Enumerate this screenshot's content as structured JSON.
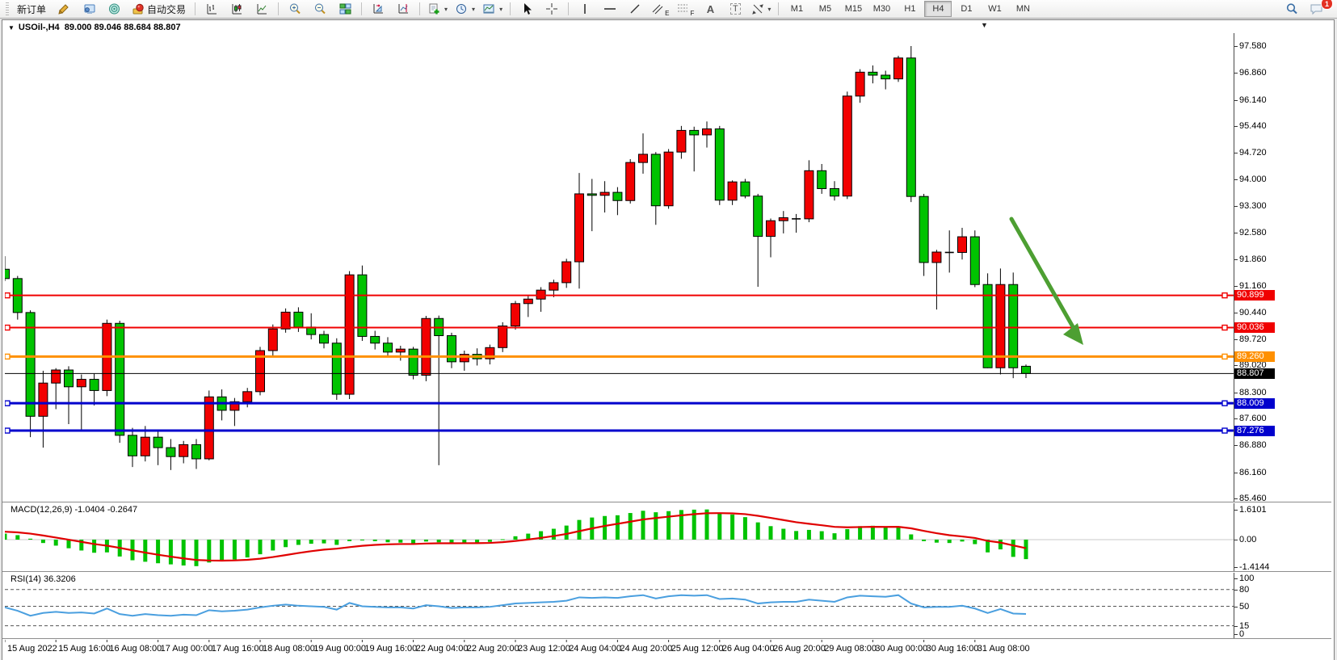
{
  "toolbar": {
    "new_order": "新订单",
    "autotrading": "自动交易",
    "timeframes": [
      "M1",
      "M5",
      "M15",
      "M30",
      "H1",
      "H4",
      "D1",
      "W1",
      "MN"
    ],
    "selected_timeframe": "H4",
    "notification_badge": "1",
    "tool_letters": {
      "channel": "E",
      "fibo": "F",
      "text": "A",
      "label": "T"
    },
    "icons": [
      "new-order",
      "market-watch",
      "navigator",
      "autotrading",
      "bar-chart",
      "candlestick-chart",
      "line-chart",
      "zoom-in",
      "zoom-out",
      "tile-windows",
      "arrange-windows",
      "cascade-windows",
      "new-chart",
      "periods",
      "templates",
      "cursor",
      "crosshair",
      "vertical-line",
      "horizontal-line",
      "trendline",
      "equidistant-channel",
      "fibonacci",
      "text",
      "text-label",
      "arrows",
      "search",
      "chat"
    ]
  },
  "chart_header": {
    "symbol_period": "USOil-,H4",
    "open": "89.000",
    "high": "89.046",
    "low": "88.684",
    "close": "88.807"
  },
  "price_scale": {
    "ticks": [
      "97.580",
      "96.860",
      "96.140",
      "95.440",
      "94.720",
      "94.000",
      "93.300",
      "92.580",
      "91.860",
      "91.160",
      "90.440",
      "89.720",
      "89.020",
      "88.300",
      "87.600",
      "86.880",
      "86.160",
      "85.460"
    ]
  },
  "levels": [
    {
      "label": "90.899",
      "price": 90.899,
      "color": "#f00000",
      "thickness": 2,
      "handles": true
    },
    {
      "label": "90.036",
      "price": 90.036,
      "color": "#f00000",
      "thickness": 2,
      "handles": true
    },
    {
      "label": "89.260",
      "price": 89.26,
      "color": "#ff9000",
      "thickness": 3,
      "handles": true
    },
    {
      "label": "88.807",
      "price": 88.807,
      "color": "#000000",
      "thickness": 1,
      "handles": false
    },
    {
      "label": "88.009",
      "price": 88.009,
      "color": "#0000cd",
      "thickness": 3,
      "handles": true
    },
    {
      "label": "87.276",
      "price": 87.276,
      "color": "#0000cd",
      "thickness": 3,
      "handles": true
    }
  ],
  "time_axis": [
    "15 Aug 2022",
    "15 Aug 16:00",
    "16 Aug 08:00",
    "17 Aug 00:00",
    "17 Aug 16:00",
    "18 Aug 08:00",
    "19 Aug 00:00",
    "19 Aug 16:00",
    "22 Aug 04:00",
    "22 Aug 20:00",
    "23 Aug 12:00",
    "24 Aug 04:00",
    "24 Aug 20:00",
    "25 Aug 12:00",
    "26 Aug 04:00",
    "26 Aug 20:00",
    "29 Aug 08:00",
    "30 Aug 00:00",
    "30 Aug 16:00",
    "31 Aug 08:00"
  ],
  "macd_panel": {
    "label": "MACD(12,26,9)",
    "values": "-1.0404 -0.2647",
    "scale": [
      "1.6101",
      "0.00",
      "-1.4144"
    ]
  },
  "rsi_panel": {
    "label": "RSI(14)",
    "value": "36.3206",
    "scale": [
      100,
      80,
      50,
      15,
      0
    ],
    "dashed_levels": [
      80,
      50,
      15
    ]
  },
  "chart_data": {
    "type": "candlestick",
    "title": "USOil-,H4",
    "ylim": [
      85.46,
      97.58
    ],
    "up_color": "#f20000",
    "down_color": "#00c300",
    "doji_color": "#000000",
    "candles": [
      [
        91.6,
        91.95,
        91.28,
        91.35
      ],
      [
        91.35,
        91.42,
        90.25,
        90.44
      ],
      [
        90.44,
        90.5,
        87.1,
        87.66
      ],
      [
        87.66,
        88.88,
        86.82,
        88.55
      ],
      [
        88.55,
        88.95,
        87.85,
        88.9
      ],
      [
        88.9,
        89.0,
        87.45,
        88.45
      ],
      [
        88.45,
        88.78,
        87.25,
        88.65
      ],
      [
        88.65,
        88.8,
        87.95,
        88.35
      ],
      [
        88.35,
        90.25,
        88.2,
        90.15
      ],
      [
        90.15,
        90.22,
        86.95,
        87.15
      ],
      [
        87.15,
        87.35,
        86.3,
        86.6
      ],
      [
        86.6,
        87.4,
        86.45,
        87.1
      ],
      [
        87.1,
        87.3,
        86.35,
        86.82
      ],
      [
        86.82,
        87.05,
        86.22,
        86.58
      ],
      [
        86.58,
        87.0,
        86.4,
        86.9
      ],
      [
        86.9,
        87.05,
        86.25,
        86.52
      ],
      [
        86.52,
        88.35,
        86.48,
        88.18
      ],
      [
        88.18,
        88.38,
        87.55,
        87.82
      ],
      [
        87.82,
        88.15,
        87.4,
        88.05
      ],
      [
        88.05,
        88.42,
        87.9,
        88.32
      ],
      [
        88.32,
        89.52,
        88.22,
        89.42
      ],
      [
        89.42,
        90.12,
        89.25,
        90.0
      ],
      [
        90.0,
        90.55,
        89.9,
        90.45
      ],
      [
        90.45,
        90.58,
        89.92,
        90.05
      ],
      [
        90.05,
        90.42,
        89.72,
        89.85
      ],
      [
        89.85,
        89.95,
        89.48,
        89.62
      ],
      [
        89.62,
        89.75,
        88.1,
        88.25
      ],
      [
        88.25,
        91.55,
        88.12,
        91.45
      ],
      [
        91.45,
        91.7,
        89.68,
        89.8
      ],
      [
        89.8,
        89.95,
        89.45,
        89.62
      ],
      [
        89.62,
        89.78,
        89.25,
        89.38
      ],
      [
        89.38,
        89.55,
        89.15,
        89.46
      ],
      [
        89.46,
        89.52,
        88.65,
        88.76
      ],
      [
        88.76,
        90.35,
        88.6,
        90.28
      ],
      [
        90.28,
        90.36,
        86.35,
        89.82
      ],
      [
        89.82,
        89.9,
        88.95,
        89.12
      ],
      [
        89.12,
        89.42,
        88.88,
        89.32
      ],
      [
        89.32,
        89.48,
        89.02,
        89.2
      ],
      [
        89.2,
        89.58,
        89.05,
        89.5
      ],
      [
        89.5,
        90.18,
        89.38,
        90.08
      ],
      [
        90.08,
        90.75,
        89.98,
        90.68
      ],
      [
        90.68,
        90.88,
        90.32,
        90.8
      ],
      [
        90.8,
        91.12,
        90.46,
        91.04
      ],
      [
        91.04,
        91.32,
        90.85,
        91.24
      ],
      [
        91.24,
        91.88,
        91.1,
        91.8
      ],
      [
        91.8,
        94.18,
        91.08,
        93.62
      ],
      [
        93.62,
        94.02,
        92.62,
        93.58
      ],
      [
        93.58,
        93.96,
        93.12,
        93.66
      ],
      [
        93.66,
        93.8,
        93.05,
        93.44
      ],
      [
        93.44,
        94.55,
        93.36,
        94.46
      ],
      [
        94.46,
        95.24,
        94.16,
        94.68
      ],
      [
        94.68,
        94.74,
        92.79,
        93.3
      ],
      [
        93.3,
        94.82,
        93.22,
        94.74
      ],
      [
        94.74,
        95.44,
        94.56,
        95.32
      ],
      [
        95.32,
        95.42,
        94.22,
        95.2
      ],
      [
        95.2,
        95.56,
        94.86,
        95.36
      ],
      [
        95.36,
        95.44,
        93.32,
        93.45
      ],
      [
        93.45,
        93.98,
        93.32,
        93.94
      ],
      [
        93.94,
        94.02,
        93.5,
        93.56
      ],
      [
        93.56,
        93.62,
        91.13,
        92.48
      ],
      [
        92.48,
        92.96,
        91.92,
        92.9
      ],
      [
        92.9,
        93.16,
        92.56,
        92.98
      ],
      [
        92.98,
        93.08,
        92.58,
        92.95
      ],
      [
        92.95,
        94.52,
        92.86,
        94.24
      ],
      [
        94.24,
        94.42,
        93.62,
        93.76
      ],
      [
        93.76,
        93.96,
        93.44,
        93.56
      ],
      [
        93.56,
        96.36,
        93.48,
        96.24
      ],
      [
        96.24,
        96.96,
        96.06,
        96.88
      ],
      [
        96.88,
        97.06,
        96.58,
        96.8
      ],
      [
        96.8,
        96.92,
        96.42,
        96.7
      ],
      [
        96.7,
        97.32,
        96.62,
        97.26
      ],
      [
        97.26,
        97.58,
        93.4,
        93.55
      ],
      [
        93.55,
        93.62,
        91.42,
        91.78
      ],
      [
        91.78,
        92.12,
        90.52,
        92.06
      ],
      [
        92.06,
        92.64,
        91.51,
        92.05
      ],
      [
        92.05,
        92.71,
        91.86,
        92.47
      ],
      [
        92.47,
        92.64,
        91.12,
        91.19
      ],
      [
        91.19,
        91.49,
        88.95,
        88.96
      ],
      [
        88.96,
        91.62,
        88.78,
        91.19
      ],
      [
        91.19,
        91.51,
        88.68,
        88.96
      ],
      [
        89.0,
        89.046,
        88.684,
        88.807
      ]
    ],
    "macd_histogram": [
      0.32,
      0.24,
      0.05,
      -0.18,
      -0.32,
      -0.46,
      -0.58,
      -0.7,
      -0.68,
      -0.9,
      -1.1,
      -1.18,
      -1.26,
      -1.32,
      -1.38,
      -1.4144,
      -1.22,
      -1.15,
      -1.06,
      -0.95,
      -0.78,
      -0.58,
      -0.4,
      -0.28,
      -0.22,
      -0.2,
      -0.28,
      -0.08,
      -0.04,
      -0.08,
      -0.14,
      -0.16,
      -0.24,
      -0.1,
      -0.14,
      -0.2,
      -0.18,
      -0.17,
      -0.12,
      0.02,
      0.18,
      0.32,
      0.45,
      0.58,
      0.75,
      1.05,
      1.18,
      1.26,
      1.3,
      1.42,
      1.54,
      1.46,
      1.52,
      1.58,
      1.6,
      1.6101,
      1.44,
      1.34,
      1.2,
      0.92,
      0.72,
      0.58,
      0.46,
      0.52,
      0.45,
      0.34,
      0.56,
      0.72,
      0.74,
      0.66,
      0.7,
      0.28,
      -0.08,
      -0.16,
      -0.18,
      -0.1,
      -0.24,
      -0.68,
      -0.52,
      -0.92,
      -1.0404
    ],
    "macd_signal": {
      "type": "ema_of_histogram",
      "alpha": 0.2,
      "seed": 0.45,
      "last_value": -0.2647
    },
    "rsi": [
      48,
      42,
      33,
      38,
      40,
      38,
      39,
      37,
      46,
      36,
      33,
      36,
      34,
      33,
      35,
      34,
      43,
      41,
      42,
      44,
      48,
      51,
      53,
      51,
      50,
      49,
      44,
      56,
      50,
      49,
      48,
      48,
      46,
      52,
      50,
      47,
      48,
      48,
      49,
      52,
      55,
      56,
      57,
      58,
      60,
      66,
      65,
      66,
      65,
      68,
      70,
      64,
      68,
      70,
      69,
      70,
      63,
      64,
      62,
      55,
      57,
      58,
      58,
      62,
      60,
      58,
      66,
      69,
      68,
      67,
      70,
      55,
      48,
      49,
      49,
      51,
      46,
      38,
      45,
      37,
      36.32
    ],
    "annotation_arrow": {
      "color": "#4d9f32",
      "from_price": 92.93,
      "to_price": 89.62,
      "note": "down-right arrow drawn over right side of chart"
    }
  }
}
